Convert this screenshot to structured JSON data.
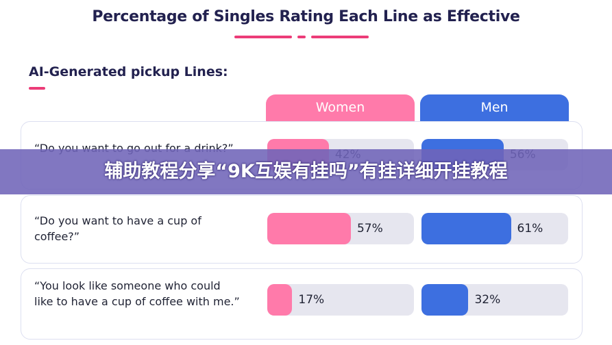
{
  "title": "Percentage of Singles Rating Each Line as Effective",
  "section_title": "AI-Generated pickup Lines:",
  "banner": "辅助教程分享“9K互娱有挂吗”有挂详细开挂教程",
  "colors": {
    "women": "#ff7aaa",
    "men": "#3d6fe0",
    "accent_pink": "#ec3c78",
    "track": "#e6e6ef"
  },
  "chart_data": {
    "type": "bar",
    "orientation": "horizontal",
    "title": "Percentage of Singles Rating Each Line as Effective",
    "section": "AI-Generated pickup Lines:",
    "categories": [
      "“Do you want to go out for a drink?”",
      "“Do you want to have a cup of coffee?”",
      "“You look like someone who could like to have a cup of coffee with me.”"
    ],
    "series": [
      {
        "name": "Women",
        "values": [
          42,
          57,
          17
        ],
        "labels": [
          "42%",
          "57%",
          "17%"
        ]
      },
      {
        "name": "Men",
        "values": [
          56,
          61,
          32
        ],
        "labels": [
          "56%",
          "61%",
          "32%"
        ]
      }
    ],
    "ylim": [
      0,
      100
    ]
  },
  "rows": [
    {
      "text": "“Do you want to go out for a drink?”"
    },
    {
      "text": "“Do you want to have a cup of coffee?”"
    },
    {
      "text": "“You look like someone who could like to have a cup of coffee with me.”"
    }
  ]
}
